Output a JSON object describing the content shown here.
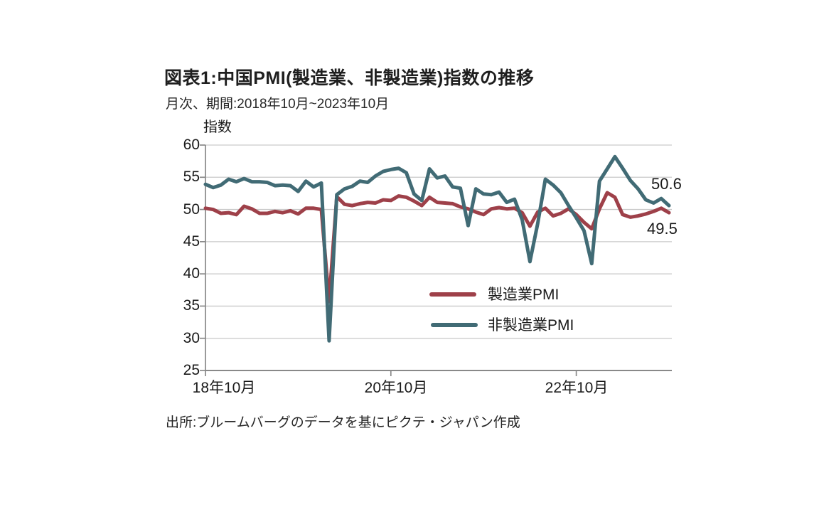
{
  "header": {
    "title": "図表1:中国PMI(製造業、非製造業)指数の推移",
    "subtitle": "月次、期間:2018年10月~2023年10月"
  },
  "source_note": "出所:ブルームバーグのデータを基にピクテ・ジャパン作成",
  "chart_data": {
    "type": "line",
    "title": "図表1:中国PMI(製造業、非製造業)指数の推移",
    "subtitle": "月次、期間:2018年10月~2023年10月",
    "ylabel": "指数",
    "xlabel": "",
    "ylim": [
      25,
      60
    ],
    "ytick_step": 5,
    "ytick_labels": [
      "60",
      "55",
      "50",
      "45",
      "40",
      "35",
      "30",
      "25"
    ],
    "x_frequency": "monthly",
    "x_start": "2018-10",
    "x_end": "2023-10",
    "xtick_labels": [
      "18年10月",
      "20年10月",
      "22年10月"
    ],
    "xtick_indices": [
      0,
      24,
      48
    ],
    "grid": "horizontal",
    "grid_color": "#C9C9C9",
    "axis_color": "#898989",
    "legend_position": "inside-lower-middle",
    "series": [
      {
        "name": "製造業PMI",
        "color": "#9E4049",
        "end_label": "49.5",
        "values": [
          50.2,
          50.0,
          49.4,
          49.5,
          49.2,
          50.5,
          50.1,
          49.4,
          49.4,
          49.7,
          49.5,
          49.8,
          49.3,
          50.2,
          50.2,
          50.0,
          35.7,
          52.0,
          50.8,
          50.6,
          50.9,
          51.1,
          51.0,
          51.5,
          51.4,
          52.1,
          51.9,
          51.3,
          50.6,
          51.9,
          51.1,
          51.0,
          50.9,
          50.4,
          50.1,
          49.6,
          49.2,
          50.1,
          50.3,
          50.1,
          50.2,
          49.5,
          47.4,
          49.6,
          50.2,
          49.0,
          49.4,
          50.1,
          49.2,
          48.0,
          47.0,
          50.1,
          52.6,
          51.9,
          49.2,
          48.8,
          49.0,
          49.3,
          49.7,
          50.2,
          49.5
        ]
      },
      {
        "name": "非製造業PMI",
        "color": "#416B75",
        "end_label": "50.6",
        "values": [
          53.9,
          53.4,
          53.8,
          54.7,
          54.3,
          54.8,
          54.3,
          54.3,
          54.2,
          53.7,
          53.8,
          53.7,
          52.8,
          54.4,
          53.5,
          54.1,
          29.6,
          52.3,
          53.2,
          53.6,
          54.4,
          54.2,
          55.2,
          55.9,
          56.2,
          56.4,
          55.7,
          52.4,
          51.4,
          56.3,
          54.9,
          55.2,
          53.5,
          53.3,
          47.5,
          53.2,
          52.4,
          52.3,
          52.7,
          51.1,
          51.6,
          48.4,
          41.9,
          47.8,
          54.7,
          53.8,
          52.6,
          50.6,
          48.7,
          46.7,
          41.6,
          54.4,
          56.3,
          58.2,
          56.4,
          54.5,
          53.2,
          51.5,
          51.0,
          51.7,
          50.6
        ]
      }
    ]
  }
}
